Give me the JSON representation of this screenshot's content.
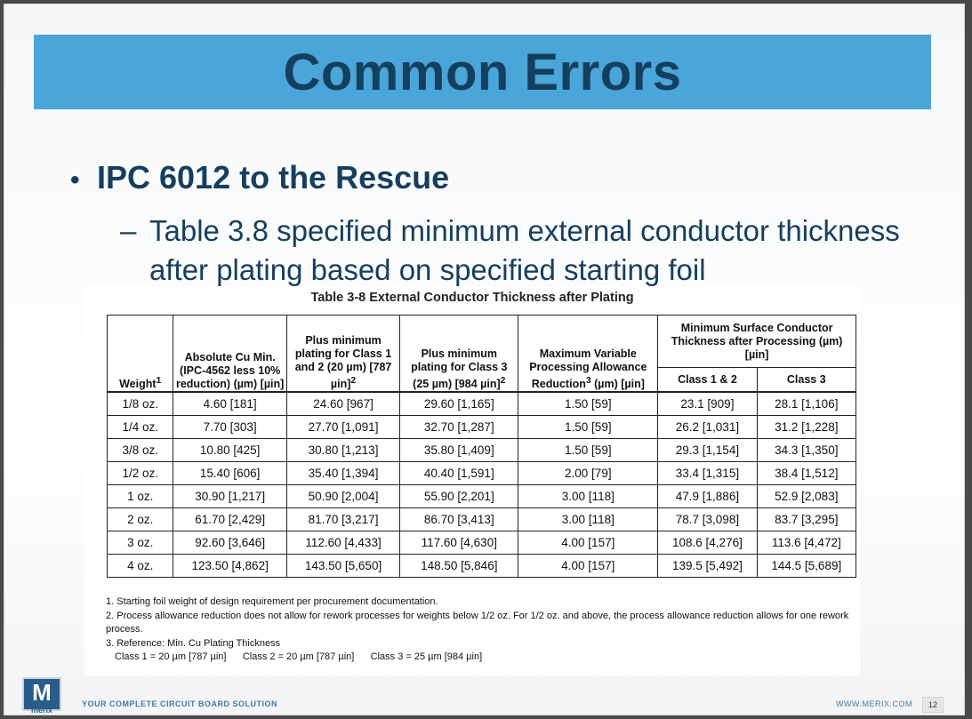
{
  "slide": {
    "title": "Common Errors",
    "bullet1": "IPC 6012 to the Rescue",
    "bullet2": "Table 3.8 specified minimum external conductor thickness after plating based on specified starting foil"
  },
  "table": {
    "caption": "Table 3-8   External Conductor Thickness after Plating",
    "headers": {
      "weight": "Weight",
      "weight_sup": "1",
      "abs_cu": "Absolute Cu Min. (IPC-4562 less 10% reduction) (µm) [µin]",
      "plus12_a": "Plus minimum plating for Class 1 and 2 (20 µm) [787 µin]",
      "plus12_sup": "2",
      "plus3_a": "Plus minimum plating for Class 3 (25 µm) [984 µin]",
      "plus3_sup": "2",
      "maxvar_a": "Maximum Variable Processing Allowance Reduction",
      "maxvar_sup": "3",
      "maxvar_b": " (µm) [µin]",
      "minsurf": "Minimum Surface Conductor Thickness after Processing (µm) [µin]",
      "class12": "Class 1 & 2",
      "class3": "Class 3"
    },
    "rows": [
      [
        "1/8 oz.",
        "4.60 [181]",
        "24.60 [967]",
        "29.60 [1,165]",
        "1.50 [59]",
        "23.1 [909]",
        "28.1 [1,106]"
      ],
      [
        "1/4 oz.",
        "7.70 [303]",
        "27.70 [1,091]",
        "32.70 [1,287]",
        "1.50 [59]",
        "26.2 [1,031]",
        "31.2 [1,228]"
      ],
      [
        "3/8 oz.",
        "10.80 [425]",
        "30.80 [1,213]",
        "35.80 [1,409]",
        "1.50 [59]",
        "29.3 [1,154]",
        "34.3 [1,350]"
      ],
      [
        "1/2 oz.",
        "15.40 [606]",
        "35.40 [1,394]",
        "40.40 [1,591]",
        "2.00 [79]",
        "33.4 [1,315]",
        "38.4 [1,512]"
      ],
      [
        "1 oz.",
        "30.90 [1,217]",
        "50.90 [2,004]",
        "55.90 [2,201]",
        "3.00 [118]",
        "47.9 [1,886]",
        "52.9 [2,083]"
      ],
      [
        "2 oz.",
        "61.70 [2,429]",
        "81.70 [3,217]",
        "86.70 [3,413]",
        "3.00 [118]",
        "78.7 [3,098]",
        "83.7 [3,295]"
      ],
      [
        "3 oz.",
        "92.60 [3,646]",
        "112.60 [4,433]",
        "117.60 [4,630]",
        "4.00 [157]",
        "108.6 [4,276]",
        "113.6 [4,472]"
      ],
      [
        "4 oz.",
        "123.50 [4,862]",
        "143.50 [5,650]",
        "148.50 [5,846]",
        "4.00 [157]",
        "139.5 [5,492]",
        "144.5 [5,689]"
      ]
    ],
    "notes": [
      "1. Starting foil weight of design requirement per procurement documentation.",
      "2. Process allowance reduction does not allow for rework processes for weights below 1/2 oz. For 1/2 oz. and above, the process allowance reduction allows for one rework process.",
      "3. Reference: Min. Cu Plating Thickness",
      "Class 1 = 20 µm [787 µin]      Class 2 = 20 µm [787 µin]      Class 3 = 25 µm [984 µin]"
    ]
  },
  "footer": {
    "logo_text": "M",
    "logo_sub": "merix",
    "tagline": "YOUR COMPLETE CIRCUIT BOARD SOLUTION",
    "url": "WWW.MERIX.COM",
    "page": "12"
  }
}
